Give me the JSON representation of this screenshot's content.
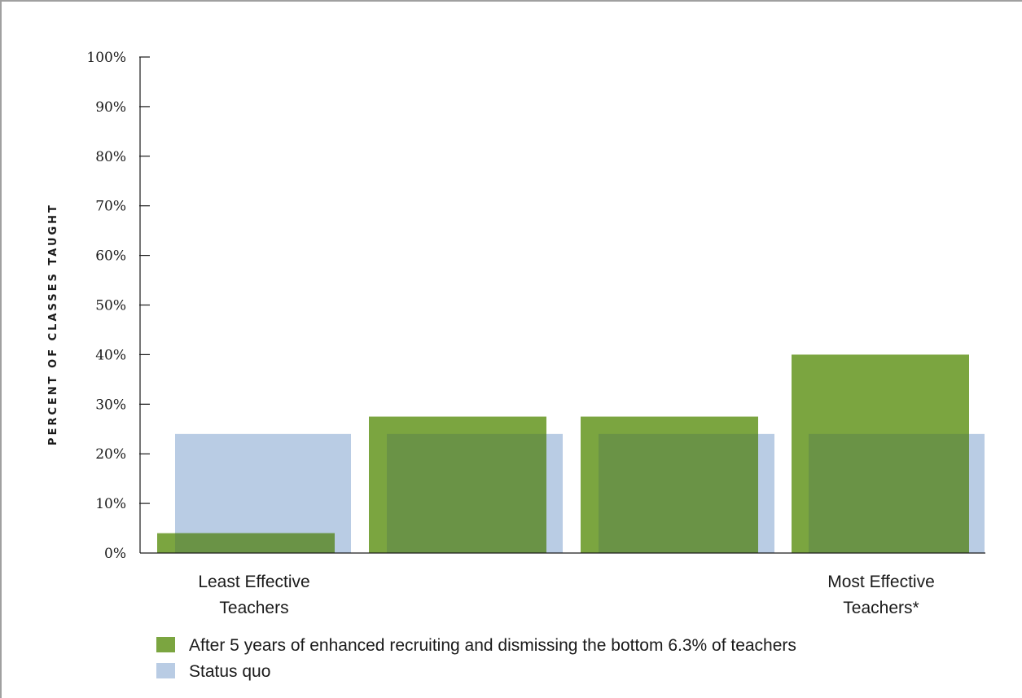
{
  "colors": {
    "after": "#7ba540",
    "status_quo": "#b9cce4",
    "overlap": "#6a9346",
    "axis": "#1a1a1a"
  },
  "chart_data": {
    "type": "bar",
    "ylabel": "PERCENT OF CLASSES TAUGHT",
    "xlabel": "",
    "ylim": [
      0,
      100
    ],
    "yticks": [
      "0%",
      "10%",
      "20%",
      "30%",
      "40%",
      "50%",
      "60%",
      "70%",
      "80%",
      "90%",
      "100%"
    ],
    "category_labels": [
      [
        "Least Effective",
        "Teachers"
      ],
      [],
      [],
      [
        "Most Effective",
        "Teachers*"
      ]
    ],
    "series": [
      {
        "name": "After 5 years of enhanced recruiting and dismissing the bottom 6.3% of teachers",
        "values": [
          4,
          27.5,
          27.5,
          40
        ]
      },
      {
        "name": "Status quo",
        "values": [
          24,
          24,
          24,
          24
        ]
      }
    ],
    "legend_position": "bottom-left",
    "grid": false
  }
}
